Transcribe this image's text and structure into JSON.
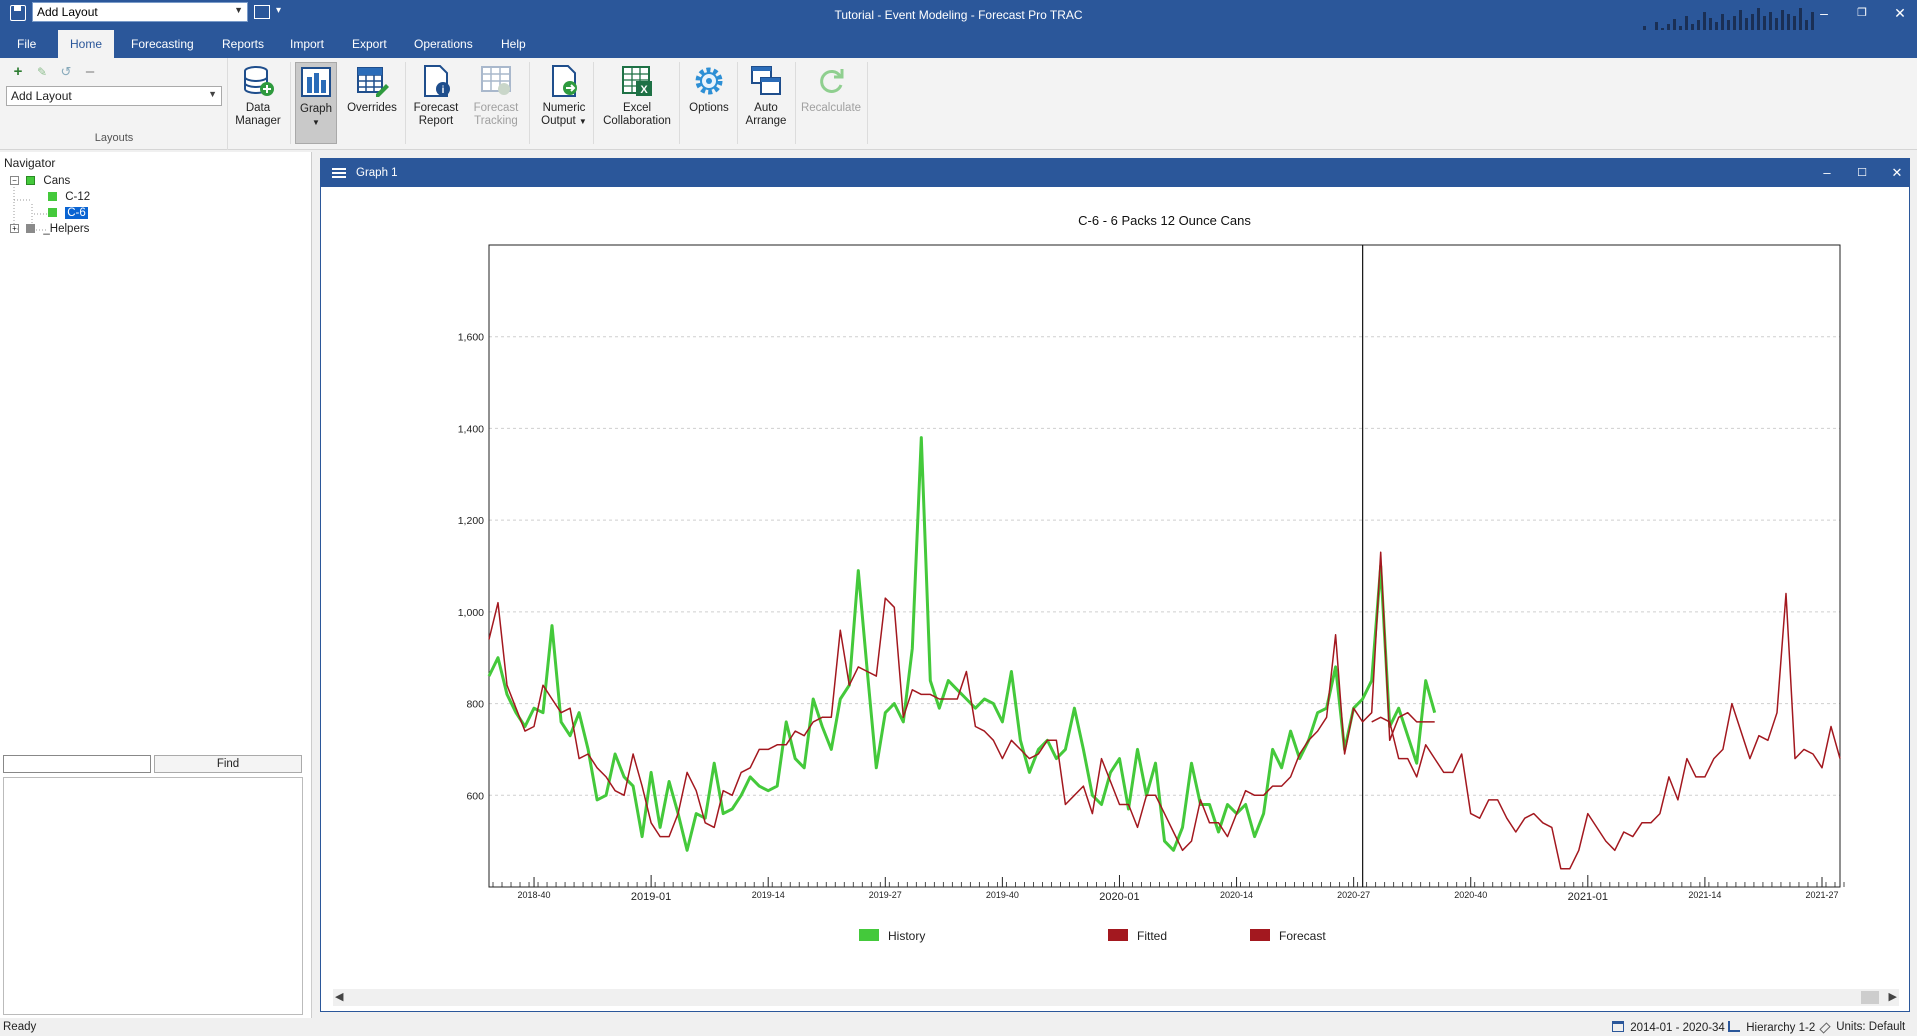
{
  "titlebar": {
    "layout_combo": "Add Layout",
    "title": "Tutorial - Event Modeling - Forecast Pro TRAC"
  },
  "tabs": [
    "File",
    "Home",
    "Forecasting",
    "Reports",
    "Import",
    "Export",
    "Operations",
    "Help"
  ],
  "active_tab": "Home",
  "ribbon": {
    "layout_select": "Add Layout",
    "layouts_group_label": "Layouts",
    "data_manager": "Data\nManager",
    "graph": "Graph",
    "overrides": "Overrides",
    "forecast_report": "Forecast\nReport",
    "forecast_tracking": "Forecast\nTracking",
    "numeric_output": "Numeric\nOutput",
    "excel_collaboration": "Excel\nCollaboration",
    "options": "Options",
    "auto_arrange": "Auto\nArrange",
    "recalculate": "Recalculate"
  },
  "navigator": {
    "title": "Navigator",
    "root": "Cans",
    "children": [
      "C-12",
      "C-6"
    ],
    "selected": "C-6",
    "helpers": "_Helpers",
    "find_button": "Find"
  },
  "graph_window": {
    "title": "Graph 1"
  },
  "status": {
    "text": "Ready",
    "range": "2014-01 - 2020-34",
    "hierarchy": "Hierarchy 1-2",
    "units": "Units: Default"
  },
  "colors": {
    "history": "#44c93b",
    "fitted": "#a3181f",
    "forecast": "#a3181f",
    "accent": "#2b579a"
  },
  "chart_data": {
    "type": "line",
    "title": "C-6 - 6 Packs 12 Ounce Cans",
    "x_tick_labels_minor": [
      "2018-40",
      "2019-14",
      "2019-27",
      "2019-40",
      "2020-14",
      "2020-27",
      "2020-40",
      "2021-14",
      "2021-27"
    ],
    "x_tick_labels_major": [
      "2019-01",
      "2020-01",
      "2021-01"
    ],
    "y_ticks": [
      600,
      800,
      "1,000",
      "1,200",
      "1,400",
      "1,600"
    ],
    "ylim": [
      400,
      1800
    ],
    "forecast_start_index": 97,
    "series": [
      {
        "name": "History",
        "color": "#44c93b",
        "start_index": 0,
        "values": [
          860,
          900,
          820,
          780,
          750,
          790,
          780,
          970,
          760,
          730,
          780,
          700,
          590,
          600,
          690,
          640,
          620,
          510,
          650,
          530,
          630,
          560,
          480,
          560,
          550,
          670,
          560,
          570,
          600,
          640,
          620,
          610,
          620,
          760,
          680,
          660,
          810,
          750,
          700,
          810,
          840,
          1090,
          870,
          660,
          780,
          800,
          760,
          920,
          1380,
          850,
          790,
          850,
          830,
          810,
          790,
          810,
          800,
          760,
          870,
          720,
          650,
          700,
          720,
          680,
          700,
          790,
          700,
          600,
          580,
          650,
          680,
          570,
          700,
          600,
          670,
          500,
          480,
          530,
          670,
          580,
          580,
          520,
          580,
          560,
          580,
          510,
          560,
          700,
          660,
          740,
          680,
          720,
          780,
          790,
          880,
          700,
          790,
          810,
          850,
          1100,
          750,
          790,
          730,
          670,
          850,
          780
        ]
      },
      {
        "name": "Fitted",
        "color": "#a3181f",
        "start_index": 0,
        "values": [
          940,
          1020,
          840,
          790,
          740,
          750,
          840,
          810,
          780,
          790,
          680,
          690,
          660,
          640,
          610,
          600,
          690,
          620,
          540,
          510,
          510,
          560,
          650,
          610,
          540,
          530,
          610,
          600,
          650,
          660,
          700,
          700,
          710,
          710,
          740,
          730,
          760,
          770,
          770,
          960,
          840,
          880,
          870,
          860,
          1030,
          1010,
          770,
          830,
          820,
          820,
          810,
          810,
          810,
          870,
          750,
          740,
          720,
          680,
          720,
          700,
          680,
          690,
          720,
          720,
          580,
          600,
          620,
          560,
          680,
          630,
          580,
          580,
          530,
          600,
          600,
          560,
          520,
          480,
          500,
          590,
          540,
          540,
          510,
          560,
          610,
          600,
          600,
          620,
          620,
          640,
          690,
          720,
          740,
          770,
          950,
          690,
          790,
          760,
          780,
          1130,
          720,
          770,
          780,
          760,
          760,
          760
        ]
      },
      {
        "name": "Forecast",
        "color": "#a3181f",
        "start_index": 98,
        "values": [
          760,
          770,
          760,
          680,
          680,
          640,
          710,
          680,
          650,
          650,
          690,
          560,
          550,
          590,
          590,
          550,
          520,
          550,
          560,
          540,
          530,
          440,
          440,
          480,
          560,
          530,
          500,
          480,
          520,
          510,
          540,
          540,
          560,
          640,
          590,
          680,
          640,
          640,
          680,
          700,
          800,
          740,
          680,
          730,
          720,
          780,
          1040,
          680,
          700,
          690,
          660,
          750,
          680
        ]
      }
    ],
    "legend": [
      "History",
      "Fitted",
      "Forecast"
    ],
    "legend_position": "bottom",
    "grid": "horizontal dashed"
  }
}
